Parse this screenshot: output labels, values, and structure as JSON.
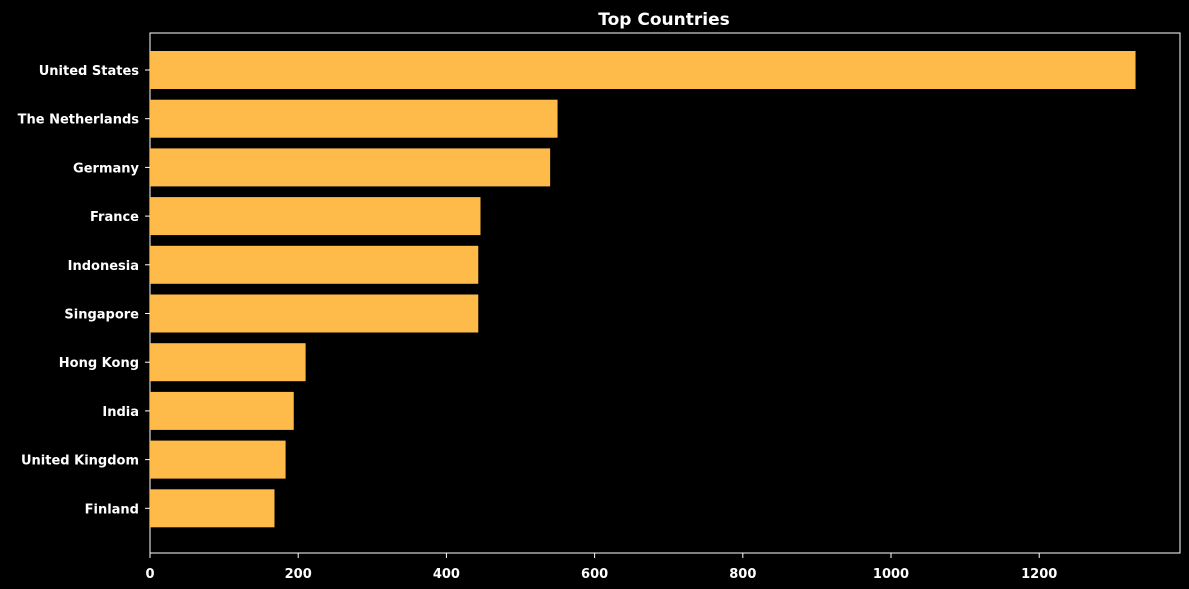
{
  "chart_data": {
    "type": "bar",
    "orientation": "horizontal",
    "title": "Top Countries",
    "xlabel": "",
    "ylabel": "",
    "categories": [
      "United States",
      "The Netherlands",
      "Germany",
      "France",
      "Indonesia",
      "Singapore",
      "Hong Kong",
      "India",
      "United Kingdom",
      "Finland"
    ],
    "values": [
      1330,
      550,
      540,
      446,
      443,
      443,
      210,
      194,
      183,
      168
    ],
    "xlim": [
      0,
      1390
    ],
    "xticks": [
      0,
      200,
      400,
      600,
      800,
      1000,
      1200
    ],
    "xtick_labels": [
      "0",
      "200",
      "400",
      "600",
      "800",
      "1000",
      "1200"
    ],
    "grid": false,
    "bar_color": "#ffbb4a",
    "background_color": "#000000",
    "axis_color": "#ffffff",
    "text_color": "#ffffff"
  }
}
